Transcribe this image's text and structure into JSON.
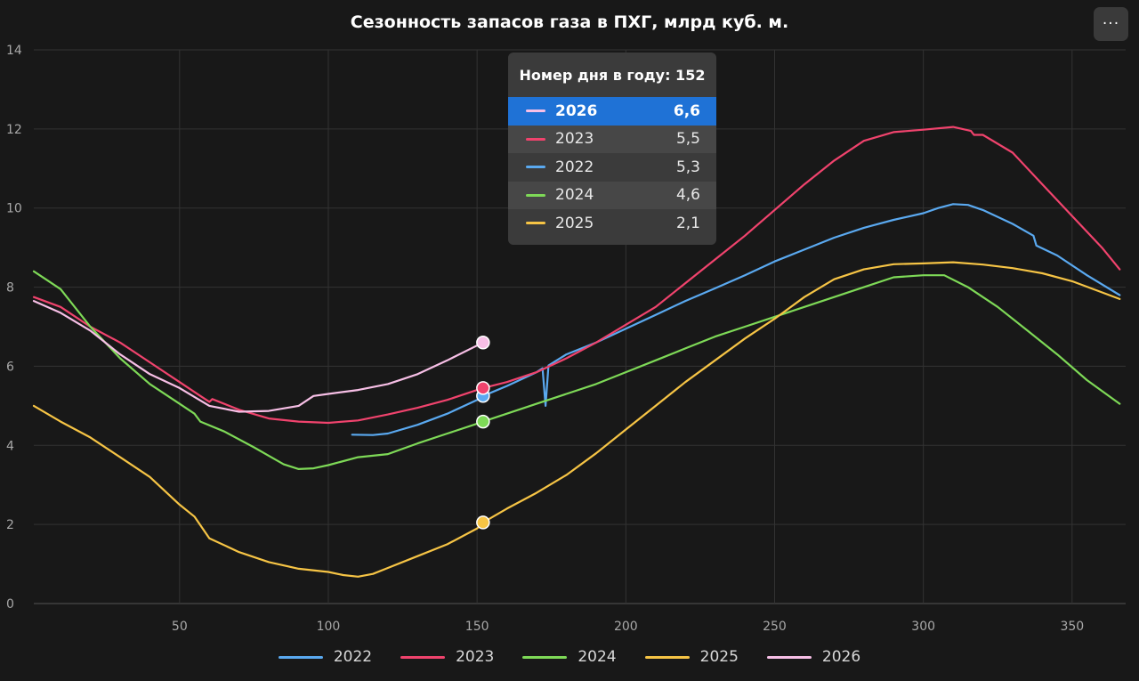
{
  "title": "Сезонность запасов газа в ПХГ, млрд куб. м.",
  "menu_label": "···",
  "colors": {
    "background": "#181818",
    "grid": "#333333",
    "axis": "#555555",
    "tick": "#a8a8a8",
    "2022": "#5aa9f0",
    "2023": "#f0436d",
    "2024": "#7ed957",
    "2025": "#f6c445",
    "2026": "#f7bfe6",
    "tooltip_selected": "#1f72d6"
  },
  "tooltip": {
    "title": "Номер дня в году: 152",
    "rows": [
      {
        "year": "2026",
        "value": "6,6",
        "selected": true
      },
      {
        "year": "2023",
        "value": "5,5",
        "selected": false
      },
      {
        "year": "2022",
        "value": "5,3",
        "selected": false
      },
      {
        "year": "2024",
        "value": "4,6",
        "selected": false
      },
      {
        "year": "2025",
        "value": "2,1",
        "selected": false
      }
    ]
  },
  "chart_data": {
    "type": "line",
    "title": "Сезонность запасов газа в ПХГ, млрд куб. м.",
    "xlim": [
      1,
      368
    ],
    "ylim": [
      0,
      14
    ],
    "x_ticks": [
      50,
      100,
      150,
      200,
      250,
      300,
      350
    ],
    "y_ticks": [
      0,
      2,
      4,
      6,
      8,
      10,
      12,
      14
    ],
    "grid": true,
    "legend_position": "bottom",
    "hover_x": 152,
    "series": [
      {
        "name": "2022",
        "points": [
          [
            108,
            4.27
          ],
          [
            115,
            4.26
          ],
          [
            120,
            4.3
          ],
          [
            130,
            4.52
          ],
          [
            140,
            4.8
          ],
          [
            150,
            5.15
          ],
          [
            152,
            5.25
          ],
          [
            160,
            5.5
          ],
          [
            170,
            5.85
          ],
          [
            172,
            5.95
          ],
          [
            173,
            5.0
          ],
          [
            174,
            6.02
          ],
          [
            180,
            6.3
          ],
          [
            190,
            6.6
          ],
          [
            200,
            6.95
          ],
          [
            210,
            7.3
          ],
          [
            220,
            7.65
          ],
          [
            230,
            7.97
          ],
          [
            240,
            8.3
          ],
          [
            250,
            8.65
          ],
          [
            260,
            8.95
          ],
          [
            270,
            9.25
          ],
          [
            280,
            9.5
          ],
          [
            290,
            9.7
          ],
          [
            300,
            9.87
          ],
          [
            305,
            10.0
          ],
          [
            310,
            10.1
          ],
          [
            315,
            10.08
          ],
          [
            320,
            9.95
          ],
          [
            330,
            9.6
          ],
          [
            337,
            9.3
          ],
          [
            338,
            9.05
          ],
          [
            345,
            8.8
          ],
          [
            355,
            8.3
          ],
          [
            366,
            7.8
          ]
        ]
      },
      {
        "name": "2023",
        "points": [
          [
            1,
            7.75
          ],
          [
            10,
            7.5
          ],
          [
            20,
            7.0
          ],
          [
            30,
            6.6
          ],
          [
            40,
            6.1
          ],
          [
            50,
            5.6
          ],
          [
            57,
            5.25
          ],
          [
            60,
            5.1
          ],
          [
            61,
            5.17
          ],
          [
            70,
            4.9
          ],
          [
            80,
            4.68
          ],
          [
            90,
            4.6
          ],
          [
            100,
            4.57
          ],
          [
            110,
            4.63
          ],
          [
            120,
            4.78
          ],
          [
            130,
            4.95
          ],
          [
            140,
            5.15
          ],
          [
            150,
            5.4
          ],
          [
            152,
            5.45
          ],
          [
            160,
            5.6
          ],
          [
            170,
            5.85
          ],
          [
            180,
            6.2
          ],
          [
            190,
            6.6
          ],
          [
            200,
            7.05
          ],
          [
            210,
            7.5
          ],
          [
            220,
            8.1
          ],
          [
            230,
            8.7
          ],
          [
            240,
            9.3
          ],
          [
            250,
            9.95
          ],
          [
            260,
            10.6
          ],
          [
            270,
            11.2
          ],
          [
            280,
            11.7
          ],
          [
            290,
            11.92
          ],
          [
            300,
            11.98
          ],
          [
            310,
            12.05
          ],
          [
            316,
            11.95
          ],
          [
            317,
            11.85
          ],
          [
            320,
            11.85
          ],
          [
            330,
            11.4
          ],
          [
            340,
            10.6
          ],
          [
            350,
            9.8
          ],
          [
            360,
            9.0
          ],
          [
            366,
            8.45
          ]
        ]
      },
      {
        "name": "2024",
        "points": [
          [
            1,
            8.4
          ],
          [
            5,
            8.2
          ],
          [
            10,
            7.95
          ],
          [
            20,
            7.0
          ],
          [
            30,
            6.2
          ],
          [
            40,
            5.55
          ],
          [
            50,
            5.05
          ],
          [
            55,
            4.8
          ],
          [
            57,
            4.6
          ],
          [
            65,
            4.35
          ],
          [
            75,
            3.95
          ],
          [
            85,
            3.52
          ],
          [
            90,
            3.4
          ],
          [
            95,
            3.42
          ],
          [
            100,
            3.5
          ],
          [
            110,
            3.7
          ],
          [
            120,
            3.78
          ],
          [
            130,
            4.05
          ],
          [
            140,
            4.3
          ],
          [
            150,
            4.55
          ],
          [
            152,
            4.6
          ],
          [
            160,
            4.8
          ],
          [
            170,
            5.05
          ],
          [
            180,
            5.3
          ],
          [
            190,
            5.55
          ],
          [
            200,
            5.85
          ],
          [
            210,
            6.15
          ],
          [
            220,
            6.45
          ],
          [
            230,
            6.75
          ],
          [
            240,
            7.0
          ],
          [
            250,
            7.25
          ],
          [
            260,
            7.5
          ],
          [
            270,
            7.75
          ],
          [
            280,
            8.0
          ],
          [
            290,
            8.25
          ],
          [
            300,
            8.3
          ],
          [
            307,
            8.3
          ],
          [
            315,
            8.0
          ],
          [
            325,
            7.5
          ],
          [
            335,
            6.9
          ],
          [
            345,
            6.3
          ],
          [
            355,
            5.65
          ],
          [
            366,
            5.05
          ]
        ]
      },
      {
        "name": "2025",
        "points": [
          [
            1,
            5.0
          ],
          [
            10,
            4.6
          ],
          [
            20,
            4.2
          ],
          [
            30,
            3.7
          ],
          [
            40,
            3.2
          ],
          [
            50,
            2.5
          ],
          [
            55,
            2.2
          ],
          [
            60,
            1.65
          ],
          [
            70,
            1.3
          ],
          [
            80,
            1.05
          ],
          [
            90,
            0.88
          ],
          [
            100,
            0.8
          ],
          [
            105,
            0.72
          ],
          [
            110,
            0.68
          ],
          [
            115,
            0.75
          ],
          [
            120,
            0.9
          ],
          [
            130,
            1.2
          ],
          [
            140,
            1.5
          ],
          [
            150,
            1.9
          ],
          [
            152,
            2.05
          ],
          [
            160,
            2.4
          ],
          [
            170,
            2.8
          ],
          [
            180,
            3.25
          ],
          [
            190,
            3.8
          ],
          [
            200,
            4.4
          ],
          [
            210,
            5.0
          ],
          [
            220,
            5.6
          ],
          [
            230,
            6.15
          ],
          [
            240,
            6.7
          ],
          [
            250,
            7.2
          ],
          [
            260,
            7.75
          ],
          [
            270,
            8.2
          ],
          [
            280,
            8.45
          ],
          [
            290,
            8.58
          ],
          [
            300,
            8.6
          ],
          [
            310,
            8.63
          ],
          [
            320,
            8.57
          ],
          [
            330,
            8.48
          ],
          [
            340,
            8.35
          ],
          [
            350,
            8.15
          ],
          [
            366,
            7.7
          ]
        ]
      },
      {
        "name": "2026",
        "points": [
          [
            1,
            7.65
          ],
          [
            10,
            7.35
          ],
          [
            20,
            6.9
          ],
          [
            30,
            6.3
          ],
          [
            40,
            5.8
          ],
          [
            50,
            5.45
          ],
          [
            60,
            5.0
          ],
          [
            70,
            4.85
          ],
          [
            80,
            4.87
          ],
          [
            90,
            5.0
          ],
          [
            95,
            5.25
          ],
          [
            100,
            5.3
          ],
          [
            110,
            5.4
          ],
          [
            120,
            5.55
          ],
          [
            130,
            5.8
          ],
          [
            140,
            6.15
          ],
          [
            152,
            6.6
          ]
        ]
      }
    ]
  },
  "legend": [
    {
      "label": "2022",
      "color": "#5aa9f0"
    },
    {
      "label": "2023",
      "color": "#f0436d"
    },
    {
      "label": "2024",
      "color": "#7ed957"
    },
    {
      "label": "2025",
      "color": "#f6c445"
    },
    {
      "label": "2026",
      "color": "#f7bfe6"
    }
  ]
}
